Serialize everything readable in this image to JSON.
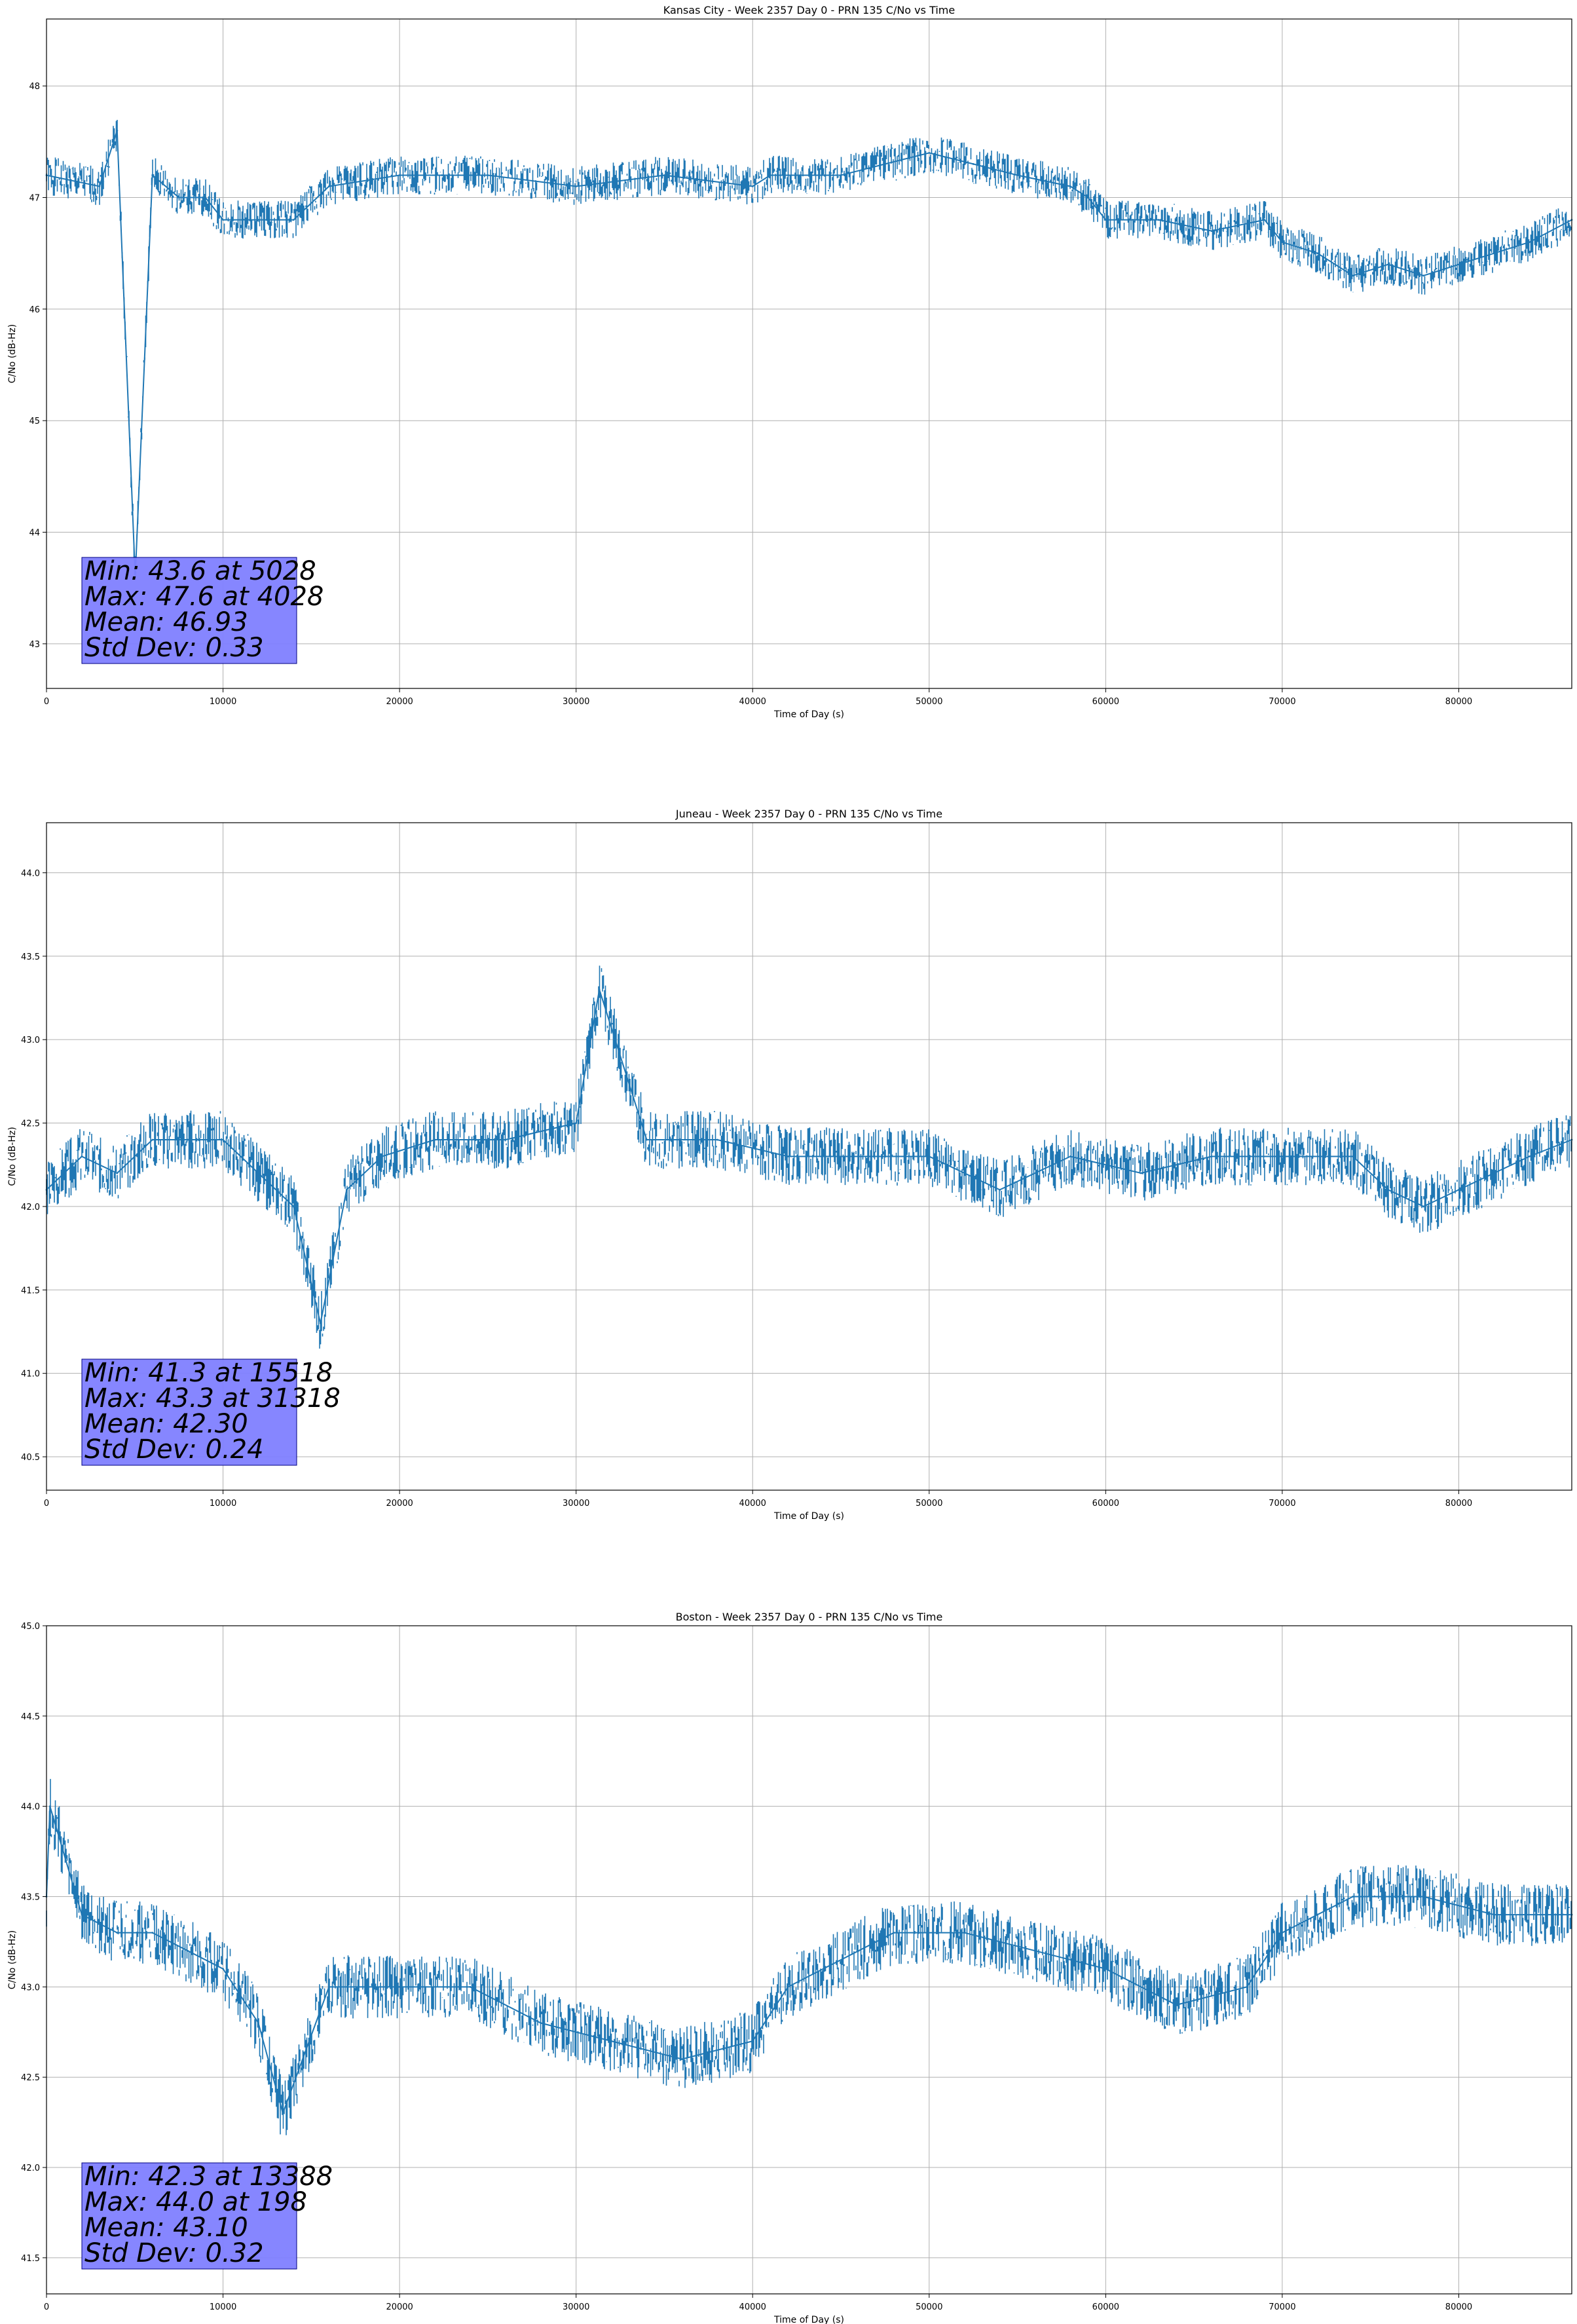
{
  "chart_data": [
    {
      "type": "line",
      "title": "Kansas City - Week 2357 Day 0 - PRN 135 C/No vs Time",
      "xlabel": "Time of Day (s)",
      "ylabel": "C/No (dB-Hz)",
      "xlim": [
        0,
        86400
      ],
      "ylim": [
        42.6,
        48.6
      ],
      "xticks": [
        0,
        10000,
        20000,
        30000,
        40000,
        50000,
        60000,
        70000,
        80000
      ],
      "yticks": [
        43,
        44,
        45,
        46,
        47,
        48
      ],
      "ytick_labels": [
        "43",
        "44",
        "45",
        "46",
        "47",
        "48"
      ],
      "grid": true,
      "series_color": "#1f77b4",
      "series": [
        {
          "x": [
            0,
            3000,
            4000,
            5028,
            6000,
            7500,
            9000,
            10000,
            12000,
            14000,
            16000,
            20000,
            22400,
            25000,
            30000,
            35000,
            40000,
            41000,
            45000,
            47500,
            50000,
            52500,
            55000,
            58000,
            59000,
            60000,
            63000,
            66000,
            69000,
            70000,
            72000,
            74000,
            76000,
            78000,
            80000,
            82000,
            84000,
            86400
          ],
          "y": [
            47.2,
            47.1,
            47.6,
            43.6,
            47.2,
            47.0,
            47.0,
            46.8,
            46.8,
            46.8,
            47.1,
            47.2,
            47.2,
            47.2,
            47.1,
            47.2,
            47.1,
            47.2,
            47.2,
            47.3,
            47.4,
            47.3,
            47.2,
            47.1,
            47.0,
            46.8,
            46.8,
            46.7,
            46.8,
            46.6,
            46.5,
            46.3,
            46.4,
            46.3,
            46.4,
            46.5,
            46.6,
            46.8
          ]
        }
      ],
      "stats": [
        "Min: 43.6 at 5028",
        "Max: 47.6 at 4028",
        "Mean: 46.93",
        "Std Dev: 0.33"
      ]
    },
    {
      "type": "line",
      "title": "Juneau - Week 2357 Day 0 - PRN 135 C/No vs Time",
      "xlabel": "Time of Day (s)",
      "ylabel": "C/No (dB-Hz)",
      "xlim": [
        0,
        86400
      ],
      "ylim": [
        40.3,
        44.3
      ],
      "xticks": [
        0,
        10000,
        20000,
        30000,
        40000,
        50000,
        60000,
        70000,
        80000
      ],
      "yticks": [
        40.5,
        41.0,
        41.5,
        42.0,
        42.5,
        43.0,
        43.5,
        44.0
      ],
      "ytick_labels": [
        "40.5",
        "41.0",
        "41.5",
        "42.0",
        "42.5",
        "43.0",
        "43.5",
        "44.0"
      ],
      "grid": true,
      "series_color": "#1f77b4",
      "series": [
        {
          "x": [
            0,
            2000,
            4000,
            6000,
            8000,
            10000,
            12000,
            14000,
            15518,
            17000,
            19000,
            22000,
            26000,
            30000,
            31318,
            34000,
            38000,
            42000,
            46000,
            50000,
            52000,
            54000,
            58000,
            62000,
            66000,
            70000,
            74000,
            76000,
            78000,
            80000,
            82000,
            84000,
            86400
          ],
          "y": [
            42.1,
            42.3,
            42.2,
            42.4,
            42.4,
            42.4,
            42.2,
            42.0,
            41.3,
            42.1,
            42.3,
            42.4,
            42.4,
            42.5,
            43.3,
            42.4,
            42.4,
            42.3,
            42.3,
            42.3,
            42.2,
            42.1,
            42.3,
            42.2,
            42.3,
            42.3,
            42.3,
            42.1,
            42.0,
            42.1,
            42.2,
            42.3,
            42.4
          ]
        }
      ],
      "stats": [
        "Min: 41.3 at 15518",
        "Max: 43.3 at 31318",
        "Mean: 42.30",
        "Std Dev: 0.24"
      ]
    },
    {
      "type": "line",
      "title": "Boston - Week 2357 Day 0 - PRN 135 C/No vs Time",
      "xlabel": "Time of Day (s)",
      "ylabel": "C/No (dB-Hz)",
      "xlim": [
        0,
        86400
      ],
      "ylim": [
        41.3,
        45.0
      ],
      "xticks": [
        0,
        10000,
        20000,
        30000,
        40000,
        50000,
        60000,
        70000,
        80000
      ],
      "yticks": [
        41.5,
        42.0,
        42.5,
        43.0,
        43.5,
        44.0,
        44.5,
        45.0
      ],
      "ytick_labels": [
        "41.5",
        "42.0",
        "42.5",
        "43.0",
        "43.5",
        "44.0",
        "44.5",
        "45.0"
      ],
      "grid": true,
      "series_color": "#1f77b4",
      "series": [
        {
          "x": [
            0,
            198,
            2000,
            4000,
            6000,
            8000,
            10000,
            12000,
            13388,
            16000,
            20000,
            24000,
            28000,
            32000,
            36000,
            40000,
            42000,
            46000,
            48000,
            52000,
            56000,
            60000,
            64000,
            68000,
            70000,
            74000,
            78000,
            82000,
            86400
          ],
          "y": [
            43.5,
            44.0,
            43.4,
            43.3,
            43.3,
            43.2,
            43.1,
            42.8,
            42.3,
            43.0,
            43.0,
            43.0,
            42.8,
            42.7,
            42.6,
            42.7,
            43.0,
            43.2,
            43.3,
            43.3,
            43.2,
            43.1,
            42.9,
            43.0,
            43.3,
            43.5,
            43.5,
            43.4,
            43.4
          ]
        }
      ],
      "stats": [
        "Min: 42.3 at 13388",
        "Max: 44.0 at 198",
        "Mean: 43.10",
        "Std Dev: 0.32"
      ]
    }
  ]
}
